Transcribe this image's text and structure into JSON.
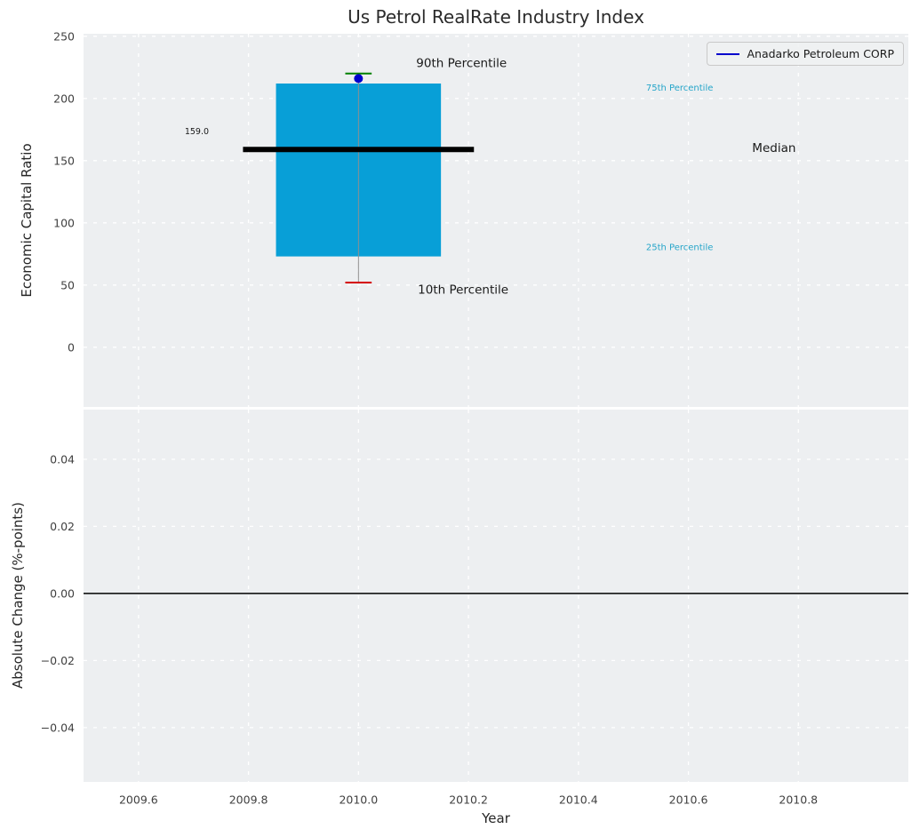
{
  "title": "Us Petrol RealRate Industry Index",
  "xlabel": "Year",
  "legend": {
    "label": "Anadarko Petroleum CORP",
    "line_color": "#0000cc"
  },
  "colors": {
    "plot_bg": "#edeff1",
    "grid": "#ffffff",
    "tick_text": "#404040",
    "box_fill": "#089fd7",
    "median": "#000000",
    "p90_cap": "#008000",
    "p10_cap": "#d40000",
    "whisker": "#909090",
    "dot": "#0000cc",
    "zero_line": "#000000",
    "percentile_text": "#25a5c9",
    "annotation_text": "#1a1a1a"
  },
  "x_axis": {
    "xlim": [
      2009.5,
      2011.0
    ],
    "ticks": [
      {
        "v": 2009.6,
        "label": "2009.6"
      },
      {
        "v": 2009.8,
        "label": "2009.8"
      },
      {
        "v": 2010.0,
        "label": "2010.0"
      },
      {
        "v": 2010.2,
        "label": "2010.2"
      },
      {
        "v": 2010.4,
        "label": "2010.4"
      },
      {
        "v": 2010.6,
        "label": "2010.6"
      },
      {
        "v": 2010.8,
        "label": "2010.8"
      }
    ]
  },
  "chart_data": [
    {
      "type": "box",
      "panel": "top",
      "title": "Us Petrol RealRate Industry Index",
      "ylabel": "Economic Capital Ratio",
      "ylim": [
        -48,
        252
      ],
      "yticks": [
        {
          "v": 0,
          "label": "0"
        },
        {
          "v": 50,
          "label": "50"
        },
        {
          "v": 100,
          "label": "100"
        },
        {
          "v": 150,
          "label": "150"
        },
        {
          "v": 200,
          "label": "200"
        },
        {
          "v": 250,
          "label": "250"
        }
      ],
      "box": {
        "x": 2010.0,
        "box_halfwidth": 0.15,
        "median_halfwidth": 0.21,
        "cap_halfwidth": 0.024,
        "p10": 52,
        "q25": 73,
        "median": 159.0,
        "q75": 212,
        "p90": 220,
        "company_point": 216,
        "company_name": "Anadarko Petroleum CORP"
      },
      "annotations": [
        {
          "text": "90th Percentile",
          "x": 2010.105,
          "y": 228,
          "size": 13.5,
          "color": "#1a1a1a"
        },
        {
          "text": "10th Percentile",
          "x": 2010.108,
          "y": 46,
          "size": 13.5,
          "color": "#1a1a1a"
        },
        {
          "text": "75th Percentile",
          "x": 2010.523,
          "y": 208,
          "size": 10,
          "color": "#25a5c9"
        },
        {
          "text": "25th Percentile",
          "x": 2010.523,
          "y": 80,
          "size": 10,
          "color": "#25a5c9"
        },
        {
          "text": "Median",
          "x": 2010.716,
          "y": 160,
          "size": 13.5,
          "color": "#1a1a1a"
        },
        {
          "text": "159.0",
          "x": 2009.684,
          "y": 173,
          "size": 9.5,
          "color": "#1a1a1a"
        }
      ]
    },
    {
      "type": "line",
      "panel": "bottom",
      "ylabel": "Absolute Change (%-points)",
      "ylim": [
        -0.0562,
        0.0548
      ],
      "yticks": [
        {
          "v": -0.04,
          "label": "−0.04"
        },
        {
          "v": -0.02,
          "label": "−0.02"
        },
        {
          "v": 0.0,
          "label": "0.00"
        },
        {
          "v": 0.02,
          "label": "0.02"
        },
        {
          "v": 0.04,
          "label": "0.04"
        }
      ],
      "zero_line": 0.0
    }
  ]
}
